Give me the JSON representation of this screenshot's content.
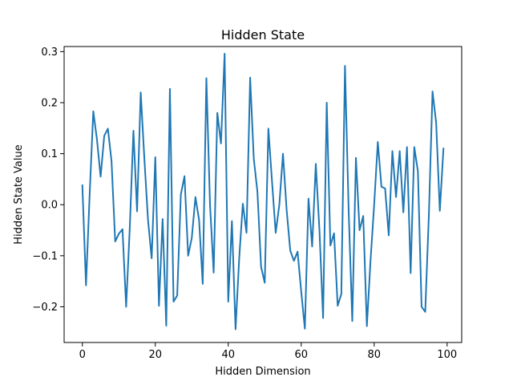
{
  "chart_data": {
    "type": "line",
    "title": "Hidden State",
    "xlabel": "Hidden Dimension",
    "ylabel": "Hidden State Value",
    "xlim": [
      -5,
      104
    ],
    "ylim": [
      -0.27,
      0.31
    ],
    "xticks": [
      0,
      20,
      40,
      60,
      80,
      100
    ],
    "xtick_labels": [
      "0",
      "20",
      "40",
      "60",
      "80",
      "100"
    ],
    "yticks": [
      -0.2,
      -0.1,
      0.0,
      0.1,
      0.2,
      0.3
    ],
    "ytick_labels": [
      "−0.2",
      "−0.1",
      "0.0",
      "0.1",
      "0.2",
      "0.3"
    ],
    "grid": false,
    "legend": "none",
    "series": [
      {
        "color": "#1f77b4",
        "x": [
          0,
          1,
          2,
          3,
          4,
          5,
          6,
          7,
          8,
          9,
          10,
          11,
          12,
          13,
          14,
          15,
          16,
          17,
          18,
          19,
          20,
          21,
          22,
          23,
          24,
          25,
          26,
          27,
          28,
          29,
          30,
          31,
          32,
          33,
          34,
          35,
          36,
          37,
          38,
          39,
          40,
          41,
          42,
          43,
          44,
          45,
          46,
          47,
          48,
          49,
          50,
          51,
          52,
          53,
          54,
          55,
          56,
          57,
          58,
          59,
          60,
          61,
          62,
          63,
          64,
          65,
          66,
          67,
          68,
          69,
          70,
          71,
          72,
          73,
          74,
          75,
          76,
          77,
          78,
          79,
          80,
          81,
          82,
          83,
          84,
          85,
          86,
          87,
          88,
          89,
          90,
          91,
          92,
          93,
          94,
          95,
          96,
          97,
          98,
          99
        ],
        "y": [
          0.038,
          -0.158,
          0.02,
          0.183,
          0.128,
          0.055,
          0.135,
          0.149,
          0.085,
          -0.072,
          -0.057,
          -0.048,
          -0.2,
          -0.045,
          0.145,
          -0.013,
          0.22,
          0.09,
          -0.03,
          -0.105,
          0.093,
          -0.198,
          -0.028,
          -0.237,
          0.227,
          -0.19,
          -0.178,
          0.02,
          0.056,
          -0.1,
          -0.065,
          0.015,
          -0.03,
          -0.155,
          0.248,
          0.0,
          -0.133,
          0.18,
          0.12,
          0.296,
          -0.19,
          -0.032,
          -0.244,
          -0.105,
          0.002,
          -0.055,
          0.249,
          0.09,
          0.025,
          -0.122,
          -0.153,
          0.149,
          0.045,
          -0.055,
          0.0,
          0.1,
          -0.01,
          -0.09,
          -0.11,
          -0.092,
          -0.17,
          -0.243,
          0.012,
          -0.082,
          0.08,
          -0.05,
          -0.222,
          0.2,
          -0.08,
          -0.056,
          -0.198,
          -0.175,
          0.272,
          -0.01,
          -0.228,
          0.092,
          -0.05,
          -0.022,
          -0.238,
          -0.11,
          0.0,
          0.123,
          0.035,
          0.032,
          -0.06,
          0.105,
          0.015,
          0.105,
          -0.015,
          0.113,
          -0.134,
          0.113,
          0.065,
          -0.2,
          -0.21,
          -0.02,
          0.222,
          0.16,
          -0.012,
          0.11
        ]
      }
    ]
  }
}
